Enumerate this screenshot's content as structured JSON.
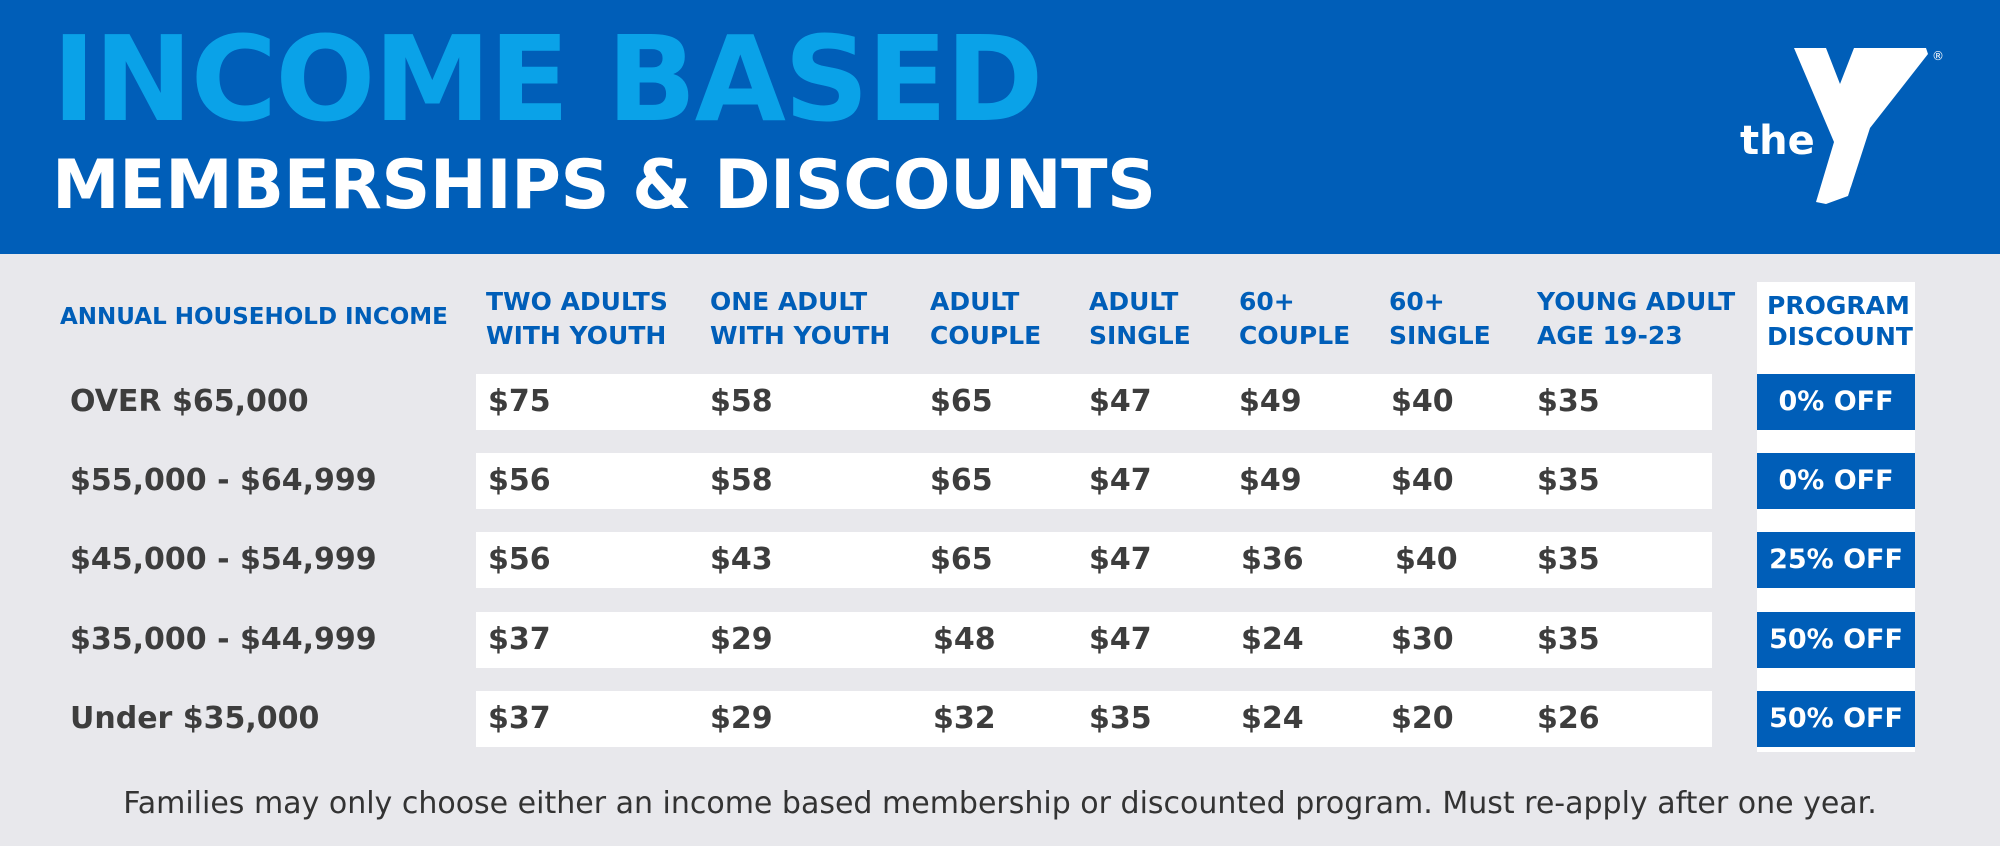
{
  "header": {
    "title": "INCOME BASED",
    "subtitle": "MEMBERSHIPS & DISCOUNTS",
    "logo": {
      "the_text": "the",
      "ymca_text": "YMCA",
      "registered": "®",
      "icon": "ymca-y-logo"
    }
  },
  "table": {
    "income_header": "ANNUAL HOUSEHOLD INCOME",
    "columns": [
      {
        "line1": "TWO ADULTS",
        "line2": "WITH YOUTH"
      },
      {
        "line1": "ONE ADULT",
        "line2": "WITH YOUTH"
      },
      {
        "line1": "ADULT",
        "line2": "COUPLE"
      },
      {
        "line1": "ADULT",
        "line2": "SINGLE"
      },
      {
        "line1": "60+",
        "line2": "COUPLE"
      },
      {
        "line1": "60+",
        "line2": "SINGLE"
      },
      {
        "line1": "YOUNG ADULT",
        "line2": "AGE 19-23"
      }
    ],
    "program_header": {
      "line1": "PROGRAM",
      "line2": "DISCOUNT"
    },
    "rows": [
      {
        "income": "OVER $65,000",
        "prices": [
          "$75",
          "$58",
          "$65",
          "$47",
          "$49",
          "$40",
          "$35"
        ],
        "discount": "0% OFF"
      },
      {
        "income": "$55,000 - $64,999",
        "prices": [
          "$56",
          "$58",
          "$65",
          "$47",
          "$49",
          "$40",
          "$35"
        ],
        "discount": "0% OFF"
      },
      {
        "income": "$45,000 - $54,999",
        "prices": [
          "$56",
          "$43",
          "$65",
          "$47",
          "$36",
          "$40",
          "$35"
        ],
        "discount": "25% OFF"
      },
      {
        "income": "$35,000 - $44,999",
        "prices": [
          "$37",
          "$29",
          "$48",
          "$47",
          "$24",
          "$30",
          "$35"
        ],
        "discount": "50% OFF"
      },
      {
        "income": "Under $35,000",
        "prices": [
          "$37",
          "$29",
          "$32",
          "$35",
          "$24",
          "$20",
          "$26"
        ],
        "discount": "50% OFF"
      }
    ]
  },
  "footer": {
    "note": "Families may only choose either an income based membership or discounted program. Must re-apply after one year."
  },
  "colors": {
    "brand_blue": "#005eb8",
    "title_cyan": "#0aa2e8",
    "background": "#e8e8ec",
    "text_dark": "#3d3d3d"
  }
}
